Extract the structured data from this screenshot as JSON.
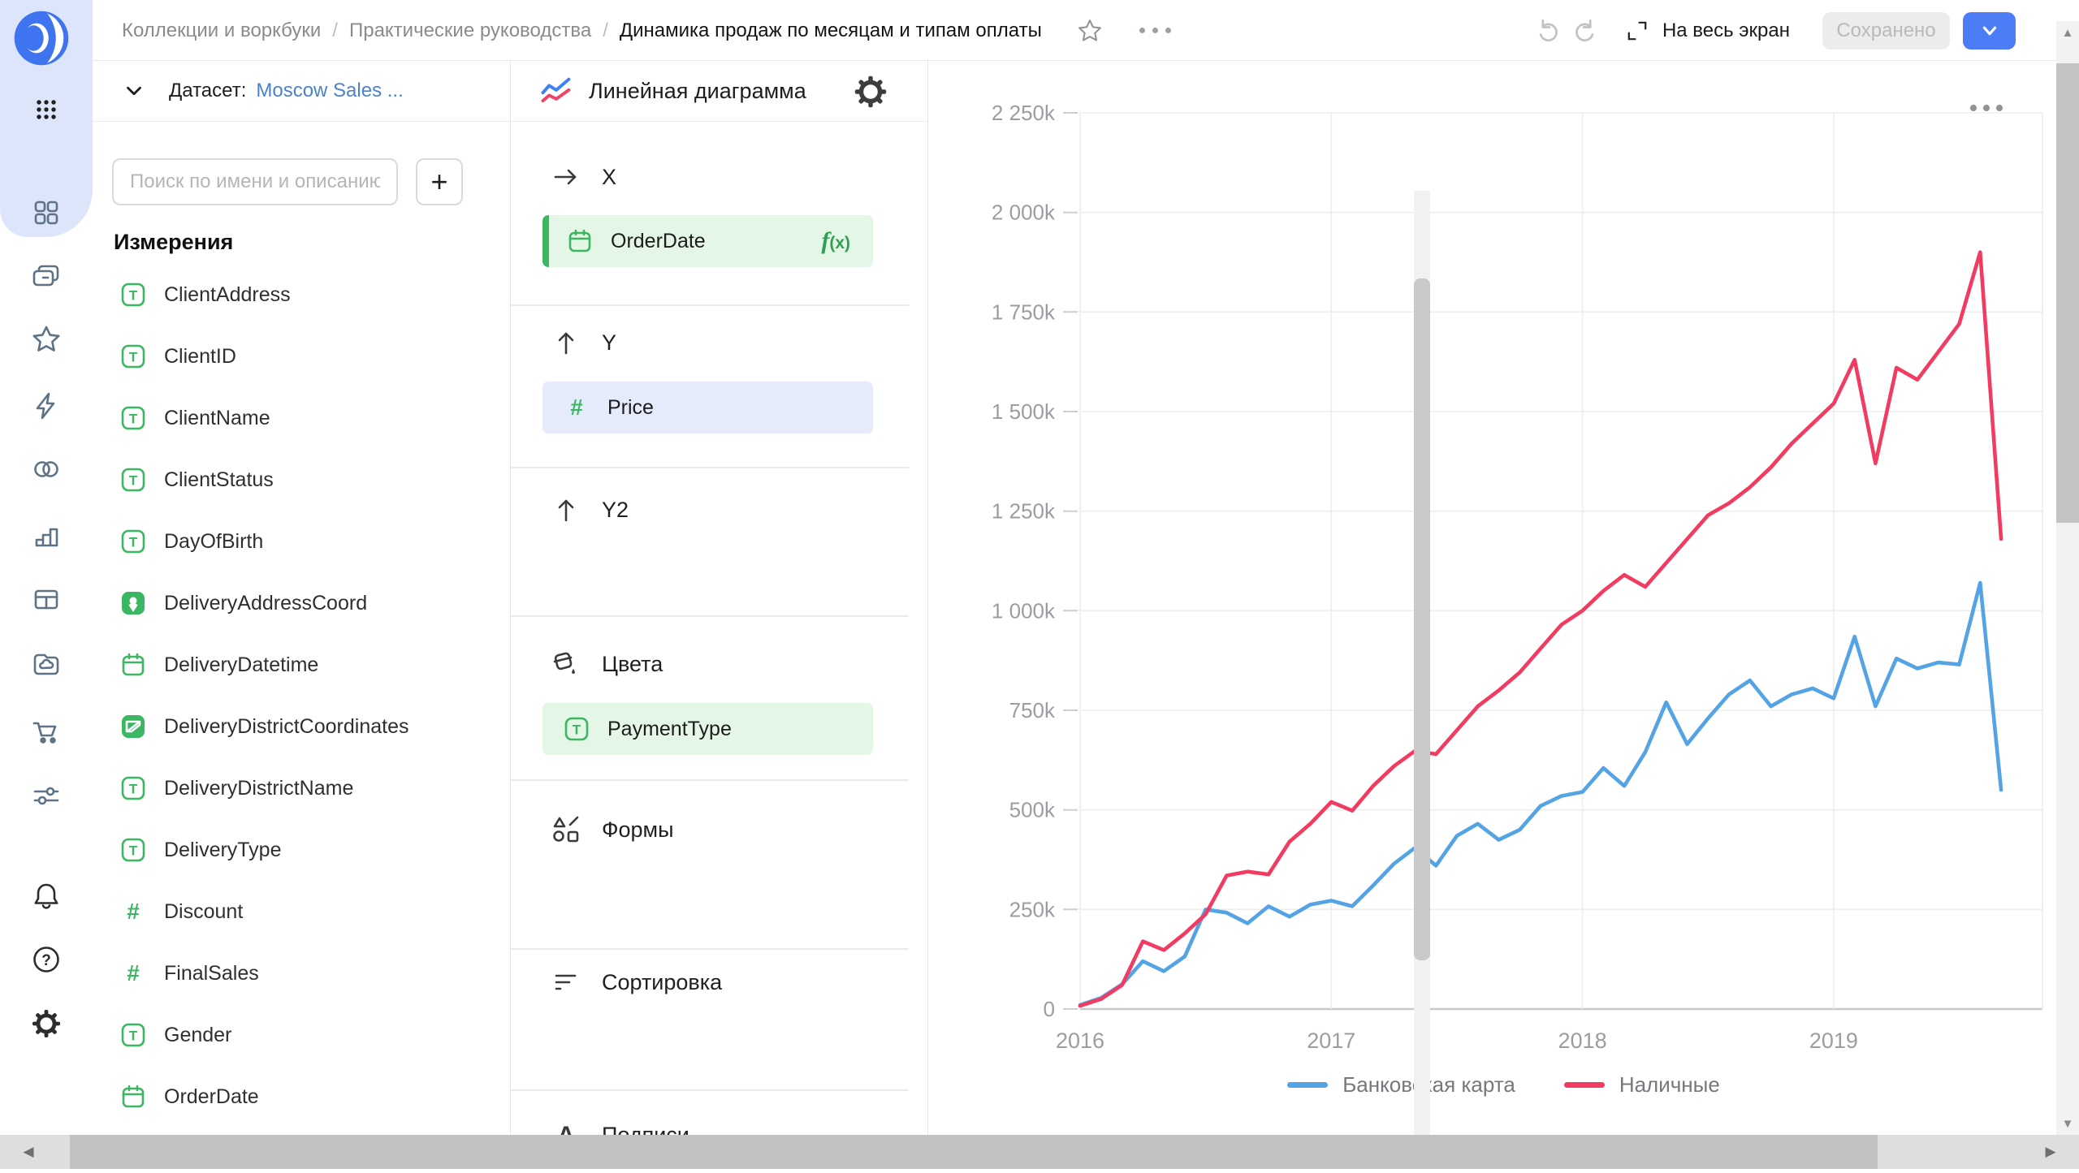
{
  "topbar": {
    "breadcrumbs": [
      "Коллекции и воркбуки",
      "Практические руководства",
      "Динамика продаж по месяцам и типам оплаты"
    ],
    "fullscreen_label": "На весь экран",
    "save_button": "Сохранено"
  },
  "sidebar": {
    "icons": [
      "apps-grid-icon",
      "tiles-icon",
      "collections-icon",
      "star-icon",
      "bolt-icon",
      "venn-icon",
      "bar-chart-icon",
      "table-icon",
      "cloud-folder-icon",
      "cart-icon",
      "filters-icon",
      "bell-icon",
      "help-icon",
      "gear-icon"
    ]
  },
  "dataset_panel": {
    "label": "Датасет:",
    "dataset_name": "Moscow Sales ...",
    "search_placeholder": "Поиск по имени и описанию",
    "add_button": "+",
    "section_title": "Измерения",
    "fields": [
      {
        "name": "ClientAddress",
        "type": "text"
      },
      {
        "name": "ClientID",
        "type": "text"
      },
      {
        "name": "ClientName",
        "type": "text"
      },
      {
        "name": "ClientStatus",
        "type": "text"
      },
      {
        "name": "DayOfBirth",
        "type": "text"
      },
      {
        "name": "DeliveryAddressCoord",
        "type": "geopoint"
      },
      {
        "name": "DeliveryDatetime",
        "type": "date"
      },
      {
        "name": "DeliveryDistrictCoordinates",
        "type": "geopolygon"
      },
      {
        "name": "DeliveryDistrictName",
        "type": "text"
      },
      {
        "name": "DeliveryType",
        "type": "text"
      },
      {
        "name": "Discount",
        "type": "number"
      },
      {
        "name": "FinalSales",
        "type": "number"
      },
      {
        "name": "Gender",
        "type": "text"
      },
      {
        "name": "OrderDate",
        "type": "date"
      }
    ]
  },
  "config_panel": {
    "title": "Линейная диаграмма",
    "sections": [
      {
        "id": "x",
        "icon": "arrow-right-icon",
        "label": "X",
        "pills": [
          {
            "text": "OrderDate",
            "type": "date",
            "style": "green",
            "bar": true,
            "fx": "(x)"
          }
        ]
      },
      {
        "id": "y",
        "icon": "arrow-up-icon",
        "label": "Y",
        "pills": [
          {
            "text": "Price",
            "type": "number",
            "style": "blue",
            "bar": false,
            "fx": null
          }
        ]
      },
      {
        "id": "y2",
        "icon": "arrow-up-icon",
        "label": "Y2",
        "pills": []
      },
      {
        "id": "colors",
        "icon": "paint-bucket-icon",
        "label": "Цвета",
        "pills": [
          {
            "text": "PaymentType",
            "type": "text",
            "style": "green",
            "bar": false,
            "fx": null
          }
        ]
      },
      {
        "id": "shapes",
        "icon": "shapes-icon",
        "label": "Формы",
        "pills": []
      },
      {
        "id": "sort",
        "icon": "sort-icon",
        "label": "Сортировка",
        "pills": []
      },
      {
        "id": "labels",
        "icon": "label-a-icon",
        "label": "Подписи",
        "pills": []
      }
    ]
  },
  "chart_data": {
    "type": "line",
    "title": "",
    "xlabel": "",
    "ylabel": "",
    "x_start": "2016-01",
    "x_unit": "month",
    "x_ticks": [
      "2016",
      "2017",
      "2018",
      "2019"
    ],
    "x_tick_month_index": [
      0,
      12,
      24,
      36
    ],
    "y_ticks_k": [
      0,
      250,
      500,
      750,
      1000,
      1250,
      1500,
      1750,
      2000,
      2250
    ],
    "y_tick_labels": [
      "0",
      "250k",
      "500k",
      "750k",
      "1 000k",
      "1 250k",
      "1 500k",
      "1 750k",
      "2 000k",
      "2 250k"
    ],
    "ylim_k": [
      0,
      2250
    ],
    "grid": true,
    "legend_position": "bottom",
    "series": [
      {
        "name": "Банковская карта",
        "color": "#54a3e4",
        "values_k": [
          10,
          28,
          62,
          120,
          95,
          132,
          250,
          242,
          215,
          258,
          232,
          262,
          272,
          258,
          310,
          365,
          405,
          360,
          435,
          465,
          425,
          450,
          510,
          535,
          545,
          605,
          560,
          645,
          770,
          665,
          730,
          790,
          825,
          760,
          790,
          805,
          780,
          935,
          760,
          880,
          855,
          870,
          865,
          1070,
          550
        ]
      },
      {
        "name": "Наличные",
        "color": "#f23b60",
        "values_k": [
          8,
          25,
          60,
          170,
          148,
          190,
          238,
          335,
          345,
          338,
          420,
          465,
          520,
          498,
          560,
          610,
          648,
          640,
          700,
          760,
          800,
          845,
          905,
          965,
          1000,
          1050,
          1090,
          1060,
          1120,
          1180,
          1240,
          1270,
          1310,
          1360,
          1420,
          1470,
          1520,
          1630,
          1370,
          1610,
          1580,
          1650,
          1720,
          1900,
          1180
        ]
      }
    ]
  },
  "colors": {
    "accent_blue": "#4c7df7",
    "field_green": "#3bb662",
    "link_blue": "#4a82cf",
    "series_blue": "#54a3e4",
    "series_red": "#f23b60"
  }
}
